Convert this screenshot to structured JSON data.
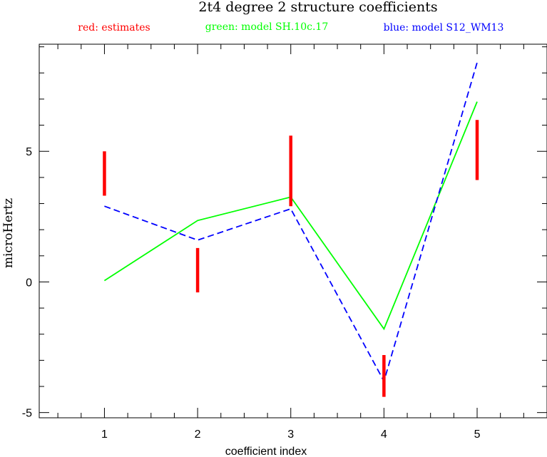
{
  "chart_data": {
    "type": "line",
    "title": "2t4 degree 2 structure coefficients",
    "xlabel": "coefficient index",
    "ylabel": "microHertz",
    "xlim": [
      0.3,
      5.75
    ],
    "ylim": [
      -5.2,
      9.1
    ],
    "x_ticks": [
      1,
      2,
      3,
      4,
      5
    ],
    "y_ticks": [
      -5,
      0,
      5
    ],
    "x_tick_labels": [
      "1",
      "2",
      "3",
      "4",
      "5"
    ],
    "y_tick_labels": [
      "-5",
      "0",
      "5"
    ],
    "x": [
      1,
      2,
      3,
      4,
      5
    ],
    "legend": {
      "red": "red: estimates",
      "green": "green: model SH.10c.17",
      "blue": "blue: model S12_WM13"
    },
    "colors": {
      "red": "#ff0000",
      "green": "#00ff00",
      "blue": "#0000ff"
    },
    "estimates": [
      {
        "x": 1,
        "low": 3.3,
        "high": 5.0
      },
      {
        "x": 2,
        "low": -0.4,
        "high": 1.3
      },
      {
        "x": 3,
        "low": 2.9,
        "high": 5.6
      },
      {
        "x": 4,
        "low": -4.4,
        "high": -2.8
      },
      {
        "x": 5,
        "low": 3.9,
        "high": 6.2
      }
    ],
    "series": [
      {
        "name": "model SH.10c.17",
        "color": "#00ff00",
        "style": "solid",
        "values": [
          0.05,
          2.35,
          3.25,
          -1.8,
          6.9
        ]
      },
      {
        "name": "model S12_WM13",
        "color": "#0000ff",
        "style": "dashed",
        "values": [
          2.9,
          1.6,
          2.8,
          -3.8,
          8.4
        ]
      }
    ],
    "grid": false
  }
}
